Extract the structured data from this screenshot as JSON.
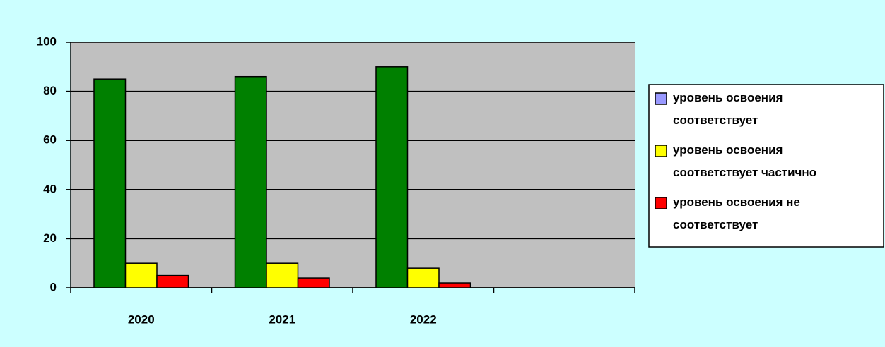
{
  "chart_data": {
    "type": "bar",
    "categories": [
      "2020",
      "2021",
      "2022",
      null
    ],
    "series": [
      {
        "name": "уровень освоения соответствует",
        "color": "#008000",
        "legend_color": "#9999ff",
        "values": [
          85,
          86,
          90,
          null
        ]
      },
      {
        "name": "уровень освоения соответствует частично",
        "color": "#ffff00",
        "values": [
          10,
          10,
          8,
          null
        ]
      },
      {
        "name": "уровень освоения не соответствует",
        "color": "#ff0000",
        "values": [
          5,
          4,
          2,
          null
        ]
      }
    ],
    "ylim": [
      0,
      100
    ],
    "yticks": [
      0,
      20,
      40,
      60,
      80,
      100
    ],
    "grid": true,
    "legend": "right"
  }
}
